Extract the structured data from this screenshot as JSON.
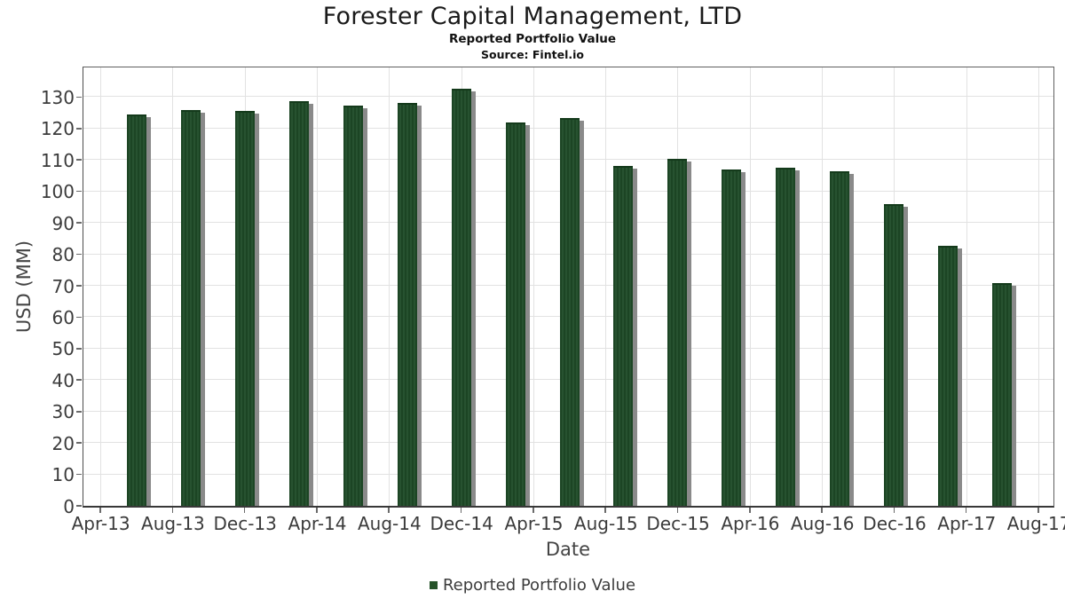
{
  "header": {
    "title": "Forester Capital Management, LTD",
    "subtitle": "Reported Portfolio Value",
    "source": "Source: Fintel.io"
  },
  "chart_data": {
    "type": "bar",
    "title": "Forester Capital Management, LTD",
    "subtitle": "Reported Portfolio Value",
    "source": "Source: Fintel.io",
    "xlabel": "Date",
    "ylabel": "USD (MM)",
    "x_tick_labels": [
      "Apr-13",
      "Aug-13",
      "Dec-13",
      "Apr-14",
      "Aug-14",
      "Dec-14",
      "Apr-15",
      "Aug-15",
      "Dec-15",
      "Apr-16",
      "Aug-16",
      "Dec-16",
      "Apr-17",
      "Aug-17"
    ],
    "x_tick_months": [
      0,
      4,
      8,
      12,
      16,
      20,
      24,
      28,
      32,
      36,
      40,
      44,
      48,
      52
    ],
    "y_tick_values": [
      0,
      10,
      20,
      30,
      40,
      50,
      60,
      70,
      80,
      90,
      100,
      110,
      120,
      130
    ],
    "ylim": [
      0,
      139.4
    ],
    "grid": true,
    "legend": {
      "position": "bottom-center",
      "entries": [
        {
          "label": "Reported Portfolio Value",
          "color": "#265329"
        }
      ]
    },
    "bar_style": {
      "fill_color": "#1e4826",
      "stripe_color": "#275230",
      "shadow_color": "#8a8a8a"
    },
    "series": [
      {
        "name": "Reported Portfolio Value",
        "x": [
          "Jun-13",
          "Sep-13",
          "Dec-13",
          "Mar-14",
          "Jun-14",
          "Sep-14",
          "Dec-14",
          "Mar-15",
          "Jun-15",
          "Sep-15",
          "Dec-15",
          "Mar-16",
          "Jun-16",
          "Sep-16",
          "Dec-16",
          "Mar-17",
          "Jun-17"
        ],
        "x_months_from_apr13": [
          2,
          5,
          8,
          11,
          14,
          17,
          20,
          23,
          26,
          29,
          32,
          35,
          38,
          41,
          44,
          47,
          50
        ],
        "values": [
          124.5,
          125.8,
          125.5,
          128.6,
          127.4,
          128.1,
          132.5,
          122.0,
          123.3,
          108.2,
          110.4,
          106.9,
          107.6,
          106.5,
          95.9,
          82.6,
          70.8
        ]
      }
    ]
  }
}
